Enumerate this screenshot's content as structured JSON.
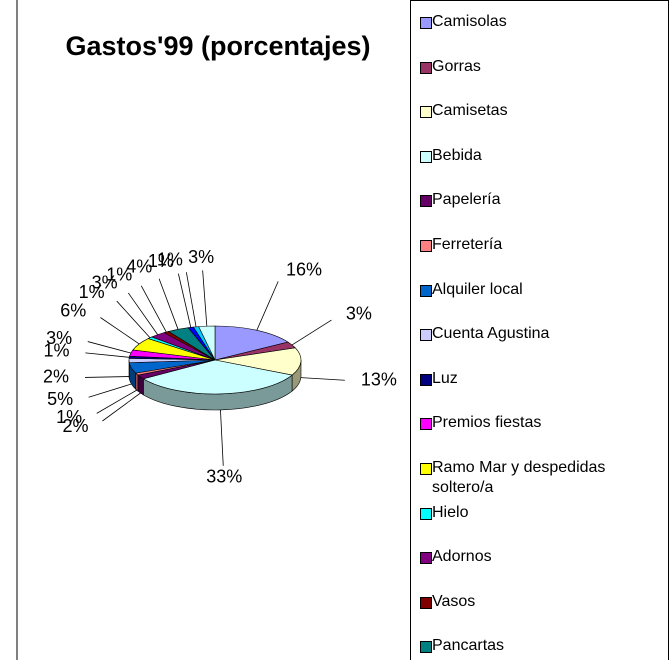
{
  "chart_data": {
    "type": "pie3d",
    "title": "Gastos'99 (porcentajes)",
    "categories": [
      "Camisolas",
      "Gorras",
      "Camisetas",
      "Bebida",
      "Papelería",
      "Ferretería",
      "Alquiler local",
      "Cuenta Agustina",
      "Luz",
      "Premios fiestas",
      "Ramo Mar y despedidas soltero/a",
      "Hielo",
      "Adornos",
      "Vasos",
      "Pancartas",
      null,
      null,
      null
    ],
    "values": [
      16,
      3,
      13,
      33,
      2,
      1,
      5,
      2,
      1,
      3,
      6,
      1,
      3,
      1,
      4,
      1,
      1,
      3
    ],
    "value_labels": [
      "16%",
      "3%",
      "13%",
      "33%",
      "2%",
      "1%",
      "5%",
      "2%",
      "1%",
      "3%",
      "6%",
      "1%",
      "3%",
      "1%",
      "4%",
      "1%",
      "1%",
      "3%"
    ],
    "colors": [
      "#9999ff",
      "#993366",
      "#ffffcc",
      "#ccffff",
      "#660066",
      "#ff8080",
      "#0066cc",
      "#ccccff",
      "#000080",
      "#ff00ff",
      "#ffff00",
      "#00ffff",
      "#800080",
      "#800000",
      "#008080",
      "#0000ff",
      "#00ccff",
      "#ccffff"
    ],
    "legend": "right"
  }
}
